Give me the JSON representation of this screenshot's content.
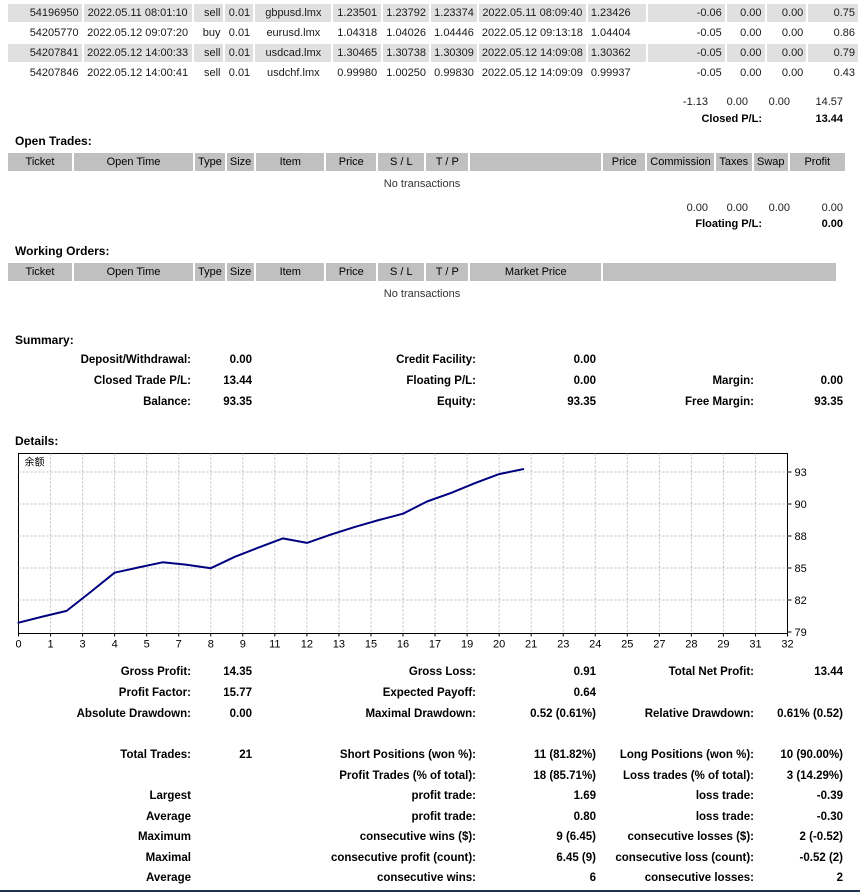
{
  "closed_trades": {
    "rows": [
      [
        "54196950",
        "2022.05.11 08:01:10",
        "sell",
        "0.01",
        "gbpusd.lmx",
        "1.23501",
        "1.23792",
        "1.23374",
        "2022.05.11 08:09:40",
        "1.23426",
        "-0.06",
        "0.00",
        "0.00",
        "0.75"
      ],
      [
        "54205770",
        "2022.05.12 09:07:20",
        "buy",
        "0.01",
        "eurusd.lmx",
        "1.04318",
        "1.04026",
        "1.04446",
        "2022.05.12 09:13:18",
        "1.04404",
        "-0.05",
        "0.00",
        "0.00",
        "0.86"
      ],
      [
        "54207841",
        "2022.05.12 14:00:33",
        "sell",
        "0.01",
        "usdcad.lmx",
        "1.30465",
        "1.30738",
        "1.30309",
        "2022.05.12 14:09:08",
        "1.30362",
        "-0.05",
        "0.00",
        "0.00",
        "0.79"
      ],
      [
        "54207846",
        "2022.05.12 14:00:41",
        "sell",
        "0.01",
        "usdchf.lmx",
        "0.99980",
        "1.00250",
        "0.99830",
        "2022.05.12 14:09:09",
        "0.99937",
        "-0.05",
        "0.00",
        "0.00",
        "0.43"
      ]
    ],
    "totals": [
      "-1.13",
      "0.00",
      "0.00",
      "14.57"
    ],
    "closed_pl_label": "Closed P/L:",
    "closed_pl_value": "13.44"
  },
  "open_trades": {
    "heading": "Open Trades:",
    "headers": [
      "Ticket",
      "Open Time",
      "Type",
      "Size",
      "Item",
      "Price",
      "S / L",
      "T / P",
      "",
      "Price",
      "Commission",
      "Taxes",
      "Swap",
      "Profit"
    ],
    "empty_text": "No transactions",
    "totals": [
      "0.00",
      "0.00",
      "0.00",
      "0.00"
    ],
    "floating_pl_label": "Floating P/L:",
    "floating_pl_value": "0.00"
  },
  "working_orders": {
    "heading": "Working Orders:",
    "headers": [
      "Ticket",
      "Open Time",
      "Type",
      "Size",
      "Item",
      "Price",
      "S / L",
      "T / P",
      "Market Price",
      ""
    ],
    "empty_text": "No transactions"
  },
  "summary": {
    "heading": "Summary:",
    "rows": [
      [
        "Deposit/Withdrawal:",
        "0.00",
        "Credit Facility:",
        "0.00",
        "",
        ""
      ],
      [
        "Closed Trade P/L:",
        "13.44",
        "Floating P/L:",
        "0.00",
        "Margin:",
        "0.00"
      ],
      [
        "Balance:",
        "93.35",
        "Equity:",
        "93.35",
        "Free Margin:",
        "93.35"
      ]
    ]
  },
  "details": {
    "heading": "Details:",
    "stats1": [
      [
        "Gross Profit:",
        "14.35",
        "Gross Loss:",
        "0.91",
        "Total Net Profit:",
        "13.44"
      ],
      [
        "Profit Factor:",
        "15.77",
        "Expected Payoff:",
        "0.64",
        "",
        ""
      ],
      [
        "Absolute Drawdown:",
        "0.00",
        "Maximal Drawdown:",
        "0.52 (0.61%)",
        "Relative Drawdown:",
        "0.61% (0.52)"
      ]
    ],
    "stats2": [
      [
        "Total Trades:",
        "21",
        "Short Positions (won %):",
        "11 (81.82%)",
        "Long Positions (won %):",
        "10 (90.00%)"
      ],
      [
        "",
        "",
        "Profit Trades (% of total):",
        "18 (85.71%)",
        "Loss trades (% of total):",
        "3 (14.29%)"
      ],
      [
        "Largest",
        "",
        "profit trade:",
        "1.69",
        "loss trade:",
        "-0.39"
      ],
      [
        "Average",
        "",
        "profit trade:",
        "0.80",
        "loss trade:",
        "-0.30"
      ],
      [
        "Maximum",
        "",
        "consecutive wins ($):",
        "9 (6.45)",
        "consecutive losses ($):",
        "2 (-0.52)"
      ],
      [
        "Maximal",
        "",
        "consecutive profit (count):",
        "6.45 (9)",
        "consecutive loss (count):",
        "-0.52 (2)"
      ],
      [
        "Average",
        "",
        "consecutive wins:",
        "6",
        "consecutive losses:",
        "2"
      ]
    ]
  },
  "chart_data": {
    "type": "line",
    "title": "余额",
    "xlabel": "",
    "ylabel": "",
    "x_tick_labels": [
      "0",
      "1",
      "3",
      "4",
      "5",
      "7",
      "8",
      "9",
      "11",
      "12",
      "13",
      "15",
      "16",
      "17",
      "19",
      "20",
      "21",
      "23",
      "24",
      "25",
      "27",
      "28",
      "29",
      "31",
      "32"
    ],
    "y_tick_labels": [
      "93",
      "90",
      "88",
      "85",
      "82",
      "79"
    ],
    "x_range": [
      0,
      32
    ],
    "y_grid_top_value": 93.1,
    "y_grid_step": 2.8,
    "grid": true,
    "legend_position": "none",
    "line_color": "#000080",
    "grid_color": "#bdbdbd",
    "series": [
      {
        "name": "Balance",
        "x": [
          0,
          1,
          2,
          3,
          4,
          5,
          6,
          7,
          8,
          9,
          10,
          11,
          12,
          13,
          14,
          15,
          16,
          17,
          18,
          19,
          20,
          21
        ],
        "values": [
          79.91,
          80.45,
          80.95,
          82.6,
          84.29,
          84.75,
          85.2,
          84.98,
          84.68,
          85.68,
          86.5,
          87.29,
          86.9,
          87.62,
          88.3,
          88.9,
          89.45,
          90.52,
          91.27,
          92.13,
          92.92,
          93.35
        ]
      }
    ]
  }
}
